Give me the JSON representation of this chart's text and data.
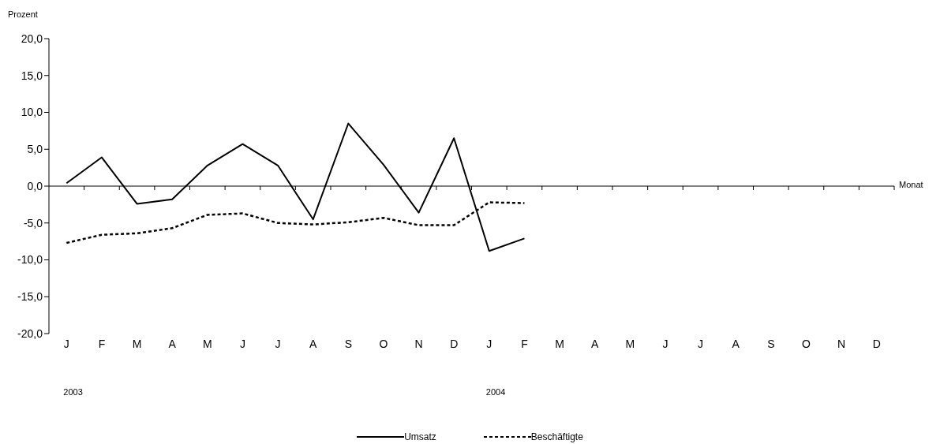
{
  "chart_data": {
    "type": "line",
    "ylabel": "Prozent",
    "xlabel": "Monat",
    "categories": [
      "J",
      "F",
      "M",
      "A",
      "M",
      "J",
      "J",
      "A",
      "S",
      "O",
      "N",
      "D",
      "J",
      "F",
      "M",
      "A",
      "M",
      "J",
      "J",
      "A",
      "S",
      "O",
      "N",
      "D"
    ],
    "series": [
      {
        "name": "Umsatz",
        "color": "#000000",
        "line_style": "solid",
        "values": [
          0.4,
          3.9,
          -2.4,
          -1.8,
          2.8,
          5.7,
          2.8,
          -4.5,
          8.5,
          2.9,
          -3.6,
          6.5,
          -8.8,
          -7.1,
          null,
          null,
          null,
          null,
          null,
          null,
          null,
          null,
          null,
          null
        ]
      },
      {
        "name": "Beschäftigte",
        "color": "#000000",
        "line_style": "dashed",
        "values": [
          -7.7,
          -6.6,
          -6.4,
          -5.7,
          -3.9,
          -3.7,
          -5.0,
          -5.2,
          -4.9,
          -4.3,
          -5.3,
          -5.3,
          -2.2,
          -2.3,
          null,
          null,
          null,
          null,
          null,
          null,
          null,
          null,
          null,
          null
        ]
      }
    ],
    "ylim": [
      -20,
      20
    ],
    "yticks": [
      {
        "value": -20,
        "label": "-20,0"
      },
      {
        "value": -15,
        "label": "-15,0"
      },
      {
        "value": -10,
        "label": "-10,0"
      },
      {
        "value": -5,
        "label": "-5,0"
      },
      {
        "value": 0,
        "label": "0,0"
      },
      {
        "value": 5,
        "label": "5,0"
      },
      {
        "value": 10,
        "label": "10,0"
      },
      {
        "value": 15,
        "label": "15,0"
      },
      {
        "value": 20,
        "label": "20,0"
      }
    ],
    "ref_lines": [
      {
        "axis": "y",
        "value": 0,
        "color": "#000000"
      }
    ],
    "annotations": [
      "2003",
      "2004"
    ],
    "grid": false,
    "legend": "bottom",
    "marker": "none"
  }
}
